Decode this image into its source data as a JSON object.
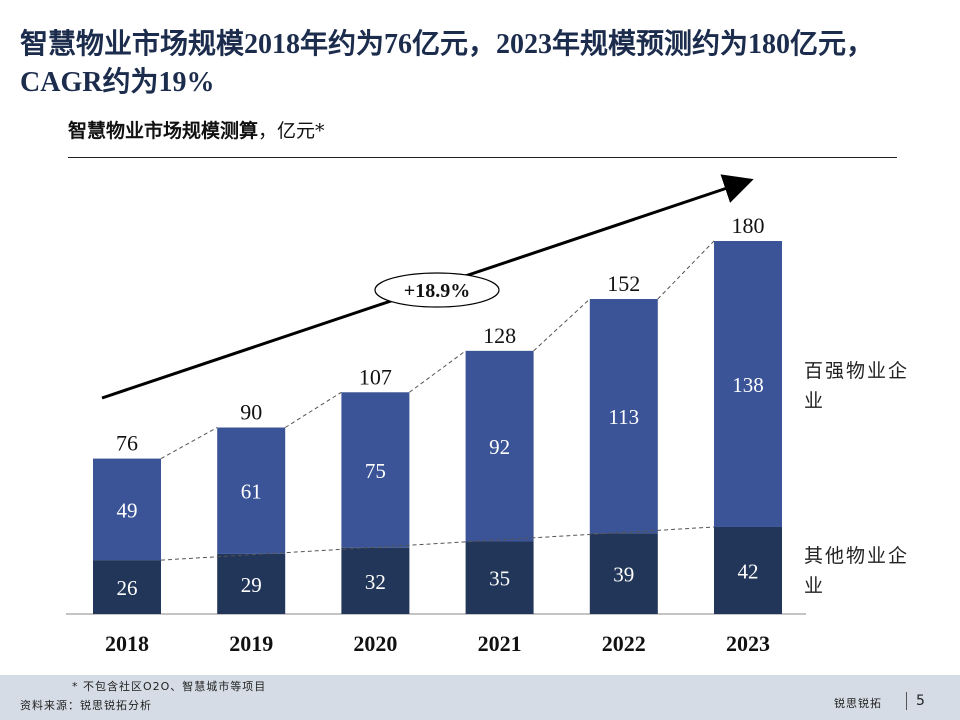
{
  "title": "智慧物业市场规模2018年约为76亿元，2023年规模预测约为180亿元，CAGR约为19%",
  "subtitle": {
    "main": "智慧物业市场规模测算",
    "unit": "，亿元*"
  },
  "chart_data": {
    "type": "bar",
    "stacked": true,
    "categories": [
      "2018",
      "2019",
      "2020",
      "2021",
      "2022",
      "2023"
    ],
    "series": [
      {
        "name": "其他物业企业",
        "values": [
          26,
          29,
          32,
          35,
          39,
          42
        ],
        "color": "#223659"
      },
      {
        "name": "百强物业企业",
        "values": [
          49,
          61,
          75,
          92,
          113,
          138
        ],
        "color": "#3b5497"
      }
    ],
    "totals": [
      76,
      90,
      107,
      128,
      152,
      180
    ],
    "ylim": [
      0,
      180
    ],
    "grid": false,
    "legend": "right",
    "annotations": [
      {
        "text": "+18.9%",
        "type": "growth-arrow"
      }
    ]
  },
  "legend_labels": {
    "top": "百强物业企业",
    "bottom": "其他物业企业"
  },
  "footer": {
    "footnote": "* 不包含社区O2O、智慧城市等项目",
    "source": "资料来源：锐思锐拓分析",
    "brand": "锐思锐拓",
    "page": "5"
  }
}
